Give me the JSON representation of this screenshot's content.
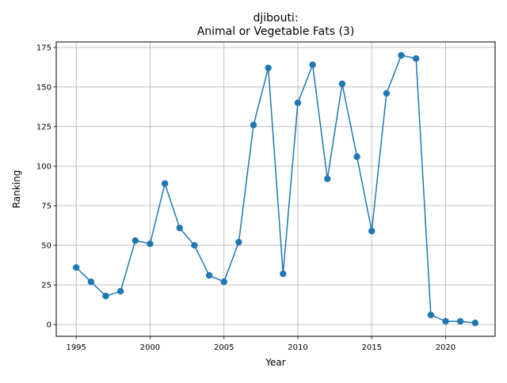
{
  "chart_data": {
    "type": "line",
    "title_line1": "djibouti:",
    "title_line2": "Animal or Vegetable Fats (3)",
    "xlabel": "Year",
    "ylabel": "Ranking",
    "xlim": [
      1993.65,
      2023.35
    ],
    "ylim": [
      -7.45,
      178.45
    ],
    "xticks": [
      1995,
      2000,
      2005,
      2010,
      2015,
      2020
    ],
    "xtick_labels": [
      "1995",
      "2000",
      "2005",
      "2010",
      "2015",
      "2020"
    ],
    "yticks": [
      0,
      25,
      50,
      75,
      100,
      125,
      150,
      175
    ],
    "ytick_labels": [
      "0",
      "25",
      "50",
      "75",
      "100",
      "125",
      "150",
      "175"
    ],
    "grid": true,
    "series": [
      {
        "color": "#1f77b4",
        "marker": "circle",
        "x": [
          1995,
          1996,
          1997,
          1998,
          1999,
          2000,
          2001,
          2002,
          2003,
          2004,
          2005,
          2006,
          2007,
          2008,
          2009,
          2010,
          2011,
          2012,
          2013,
          2014,
          2015,
          2016,
          2017,
          2018,
          2019,
          2020,
          2021,
          2022
        ],
        "y": [
          36,
          27,
          18,
          21,
          53,
          51,
          89,
          61,
          50,
          31,
          27,
          52,
          126,
          162,
          32,
          140,
          164,
          92,
          152,
          106,
          59,
          146,
          170,
          168,
          6,
          2,
          2,
          1
        ]
      }
    ]
  }
}
